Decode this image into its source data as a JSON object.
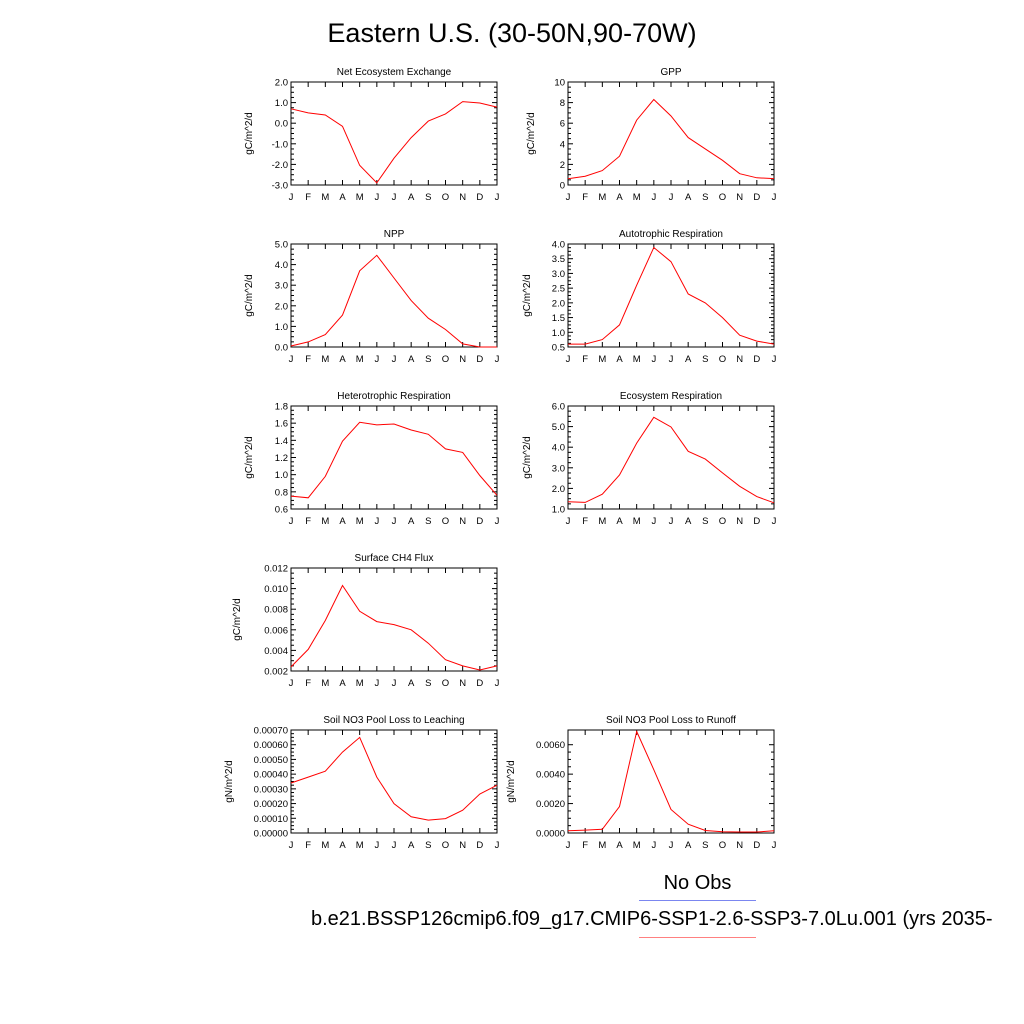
{
  "page_title": "Eastern U.S. (30-50N,90-70W)",
  "legend": {
    "obs_label": "No Obs",
    "obs_color": "#7b86f0",
    "case_label": "b.e21.BSSP126cmip6.f09_g17.CMIP6-SSP1-2.6-SSP3-7.0Lu.001 (yrs 2035-",
    "case_color": "#ff0000"
  },
  "chart_data": [
    {
      "type": "line",
      "title": "Net Ecosystem Exchange",
      "ylabel": "gC/m^2/d",
      "x": [
        "J",
        "F",
        "M",
        "A",
        "M",
        "J",
        "J",
        "A",
        "S",
        "O",
        "N",
        "D",
        "J"
      ],
      "ylim": [
        -3.0,
        2.0
      ],
      "yticks": [
        "-3.0",
        "-2.0",
        "-1.0",
        "0.0",
        "1.0",
        "2.0"
      ],
      "series": [
        {
          "values": [
            0.7,
            0.5,
            0.4,
            -0.15,
            -2.05,
            -2.9,
            -1.7,
            -0.7,
            0.1,
            0.45,
            1.05,
            0.98,
            0.78
          ],
          "color": "#ff0000"
        }
      ]
    },
    {
      "type": "line",
      "title": "GPP",
      "ylabel": "gC/m^2/d",
      "x": [
        "J",
        "F",
        "M",
        "A",
        "M",
        "J",
        "J",
        "A",
        "S",
        "O",
        "N",
        "D",
        "J"
      ],
      "ylim": [
        0,
        10
      ],
      "yticks": [
        "0",
        "2",
        "4",
        "6",
        "8",
        "10"
      ],
      "series": [
        {
          "values": [
            0.6,
            0.85,
            1.4,
            2.8,
            6.3,
            8.3,
            6.7,
            4.6,
            3.5,
            2.4,
            1.1,
            0.7,
            0.62
          ],
          "color": "#ff0000"
        }
      ]
    },
    {
      "type": "line",
      "title": "NPP",
      "ylabel": "gC/m^2/d",
      "x": [
        "J",
        "F",
        "M",
        "A",
        "M",
        "J",
        "J",
        "A",
        "S",
        "O",
        "N",
        "D",
        "J"
      ],
      "ylim": [
        0.0,
        5.0
      ],
      "yticks": [
        "0.0",
        "1.0",
        "2.0",
        "3.0",
        "4.0",
        "5.0"
      ],
      "series": [
        {
          "values": [
            0.05,
            0.25,
            0.6,
            1.55,
            3.7,
            4.45,
            3.35,
            2.25,
            1.4,
            0.85,
            0.15,
            0.0,
            0.0
          ],
          "color": "#ff0000"
        }
      ]
    },
    {
      "type": "line",
      "title": "Autotrophic Respiration",
      "ylabel": "gC/m^2/d",
      "x": [
        "J",
        "F",
        "M",
        "A",
        "M",
        "J",
        "J",
        "A",
        "S",
        "O",
        "N",
        "D",
        "J"
      ],
      "ylim": [
        0.5,
        4.0
      ],
      "yticks": [
        "0.5",
        "1.0",
        "1.5",
        "2.0",
        "2.5",
        "3.0",
        "3.5",
        "4.0"
      ],
      "series": [
        {
          "values": [
            0.6,
            0.6,
            0.75,
            1.25,
            2.6,
            3.88,
            3.4,
            2.3,
            2.0,
            1.5,
            0.9,
            0.7,
            0.6
          ],
          "color": "#ff0000"
        }
      ]
    },
    {
      "type": "line",
      "title": "Heterotrophic Respiration",
      "ylabel": "gC/m^2/d",
      "x": [
        "J",
        "F",
        "M",
        "A",
        "M",
        "J",
        "J",
        "A",
        "S",
        "O",
        "N",
        "D",
        "J"
      ],
      "ylim": [
        0.6,
        1.8
      ],
      "yticks": [
        "0.6",
        "0.8",
        "1.0",
        "1.2",
        "1.4",
        "1.6",
        "1.8"
      ],
      "series": [
        {
          "values": [
            0.75,
            0.73,
            0.98,
            1.39,
            1.61,
            1.58,
            1.59,
            1.52,
            1.47,
            1.3,
            1.26,
            0.99,
            0.76
          ],
          "color": "#ff0000"
        }
      ]
    },
    {
      "type": "line",
      "title": "Ecosystem Respiration",
      "ylabel": "gC/m^2/d",
      "x": [
        "J",
        "F",
        "M",
        "A",
        "M",
        "J",
        "J",
        "A",
        "S",
        "O",
        "N",
        "D",
        "J"
      ],
      "ylim": [
        1.0,
        6.0
      ],
      "yticks": [
        "1.0",
        "2.0",
        "3.0",
        "4.0",
        "5.0",
        "6.0"
      ],
      "series": [
        {
          "values": [
            1.35,
            1.32,
            1.72,
            2.65,
            4.2,
            5.45,
            4.98,
            3.8,
            3.42,
            2.75,
            2.1,
            1.6,
            1.3
          ],
          "color": "#ff0000"
        }
      ]
    },
    {
      "type": "line",
      "title": "Surface CH4 Flux",
      "ylabel": "gC/m^2/d",
      "x": [
        "J",
        "F",
        "M",
        "A",
        "M",
        "J",
        "J",
        "A",
        "S",
        "O",
        "N",
        "D",
        "J"
      ],
      "ylim": [
        0.002,
        0.012
      ],
      "yticks": [
        "0.002",
        "0.004",
        "0.006",
        "0.008",
        "0.010",
        "0.012"
      ],
      "series": [
        {
          "values": [
            0.0024,
            0.0041,
            0.0069,
            0.0103,
            0.0078,
            0.0068,
            0.0065,
            0.006,
            0.0047,
            0.0031,
            0.0025,
            0.0021,
            0.0025
          ],
          "color": "#ff0000"
        }
      ]
    },
    {
      "type": "line",
      "title": "Soil NO3 Pool Loss to Leaching",
      "ylabel": "gN/m^2/d",
      "x": [
        "J",
        "F",
        "M",
        "A",
        "M",
        "J",
        "J",
        "A",
        "S",
        "O",
        "N",
        "D",
        "J"
      ],
      "ylim": [
        0.0,
        0.0007
      ],
      "yticks": [
        "0.00000",
        "0.00010",
        "0.00020",
        "0.00030",
        "0.00040",
        "0.00050",
        "0.00060",
        "0.00070"
      ],
      "series": [
        {
          "values": [
            0.00034,
            0.00038,
            0.00042,
            0.00055,
            0.00065,
            0.00038,
            0.0002,
            0.00011,
            8.8e-05,
            9.8e-05,
            0.000155,
            0.000265,
            0.000325
          ],
          "color": "#ff0000"
        }
      ]
    },
    {
      "type": "line",
      "title": "Soil NO3 Pool Loss to Runoff",
      "ylabel": "gN/m^2/d",
      "x": [
        "J",
        "F",
        "M",
        "A",
        "M",
        "J",
        "J",
        "A",
        "S",
        "O",
        "N",
        "D",
        "J"
      ],
      "ylim": [
        0.0,
        0.007
      ],
      "yticks": [
        "0.0000",
        "0.0020",
        "0.0040",
        "0.0060"
      ],
      "series": [
        {
          "values": [
            0.00015,
            0.0002,
            0.00025,
            0.0018,
            0.0069,
            0.0043,
            0.0016,
            0.0006,
            0.00017,
            8e-05,
            7e-05,
            7e-05,
            0.00015
          ],
          "color": "#ff0000"
        }
      ]
    }
  ]
}
